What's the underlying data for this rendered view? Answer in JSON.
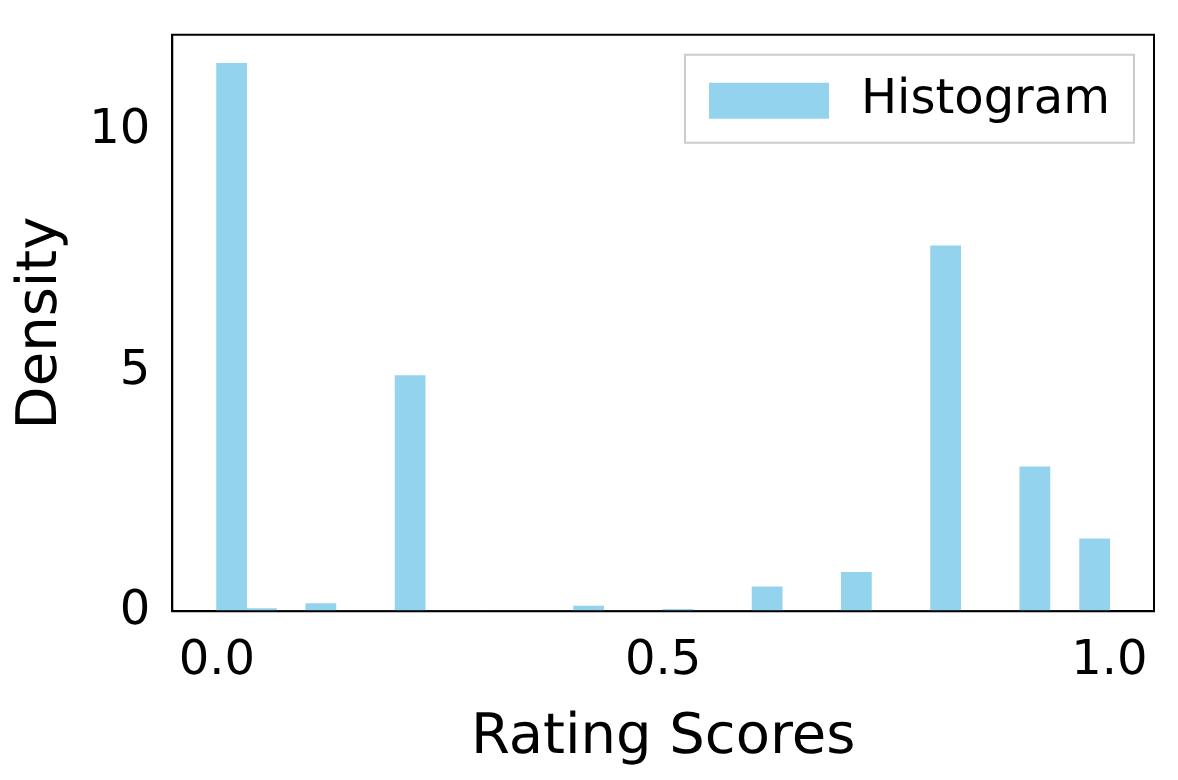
{
  "chart_data": {
    "type": "histogram",
    "xlabel": "Rating Scores",
    "ylabel": "Density",
    "bins": [
      0,
      0.033,
      0.067,
      0.1,
      0.133,
      0.167,
      0.2,
      0.233,
      0.267,
      0.3,
      0.333,
      0.367,
      0.4,
      0.433,
      0.467,
      0.5,
      0.533,
      0.567,
      0.6,
      0.633,
      0.667,
      0.7,
      0.733,
      0.767,
      0.8,
      0.833,
      0.867,
      0.9,
      0.933,
      0.967,
      1
    ],
    "series": [
      {
        "name": "Histogram",
        "color": "#94d3ee",
        "values": [
          11.4,
          0.05,
          0,
          0.15,
          0,
          0,
          4.9,
          0,
          0,
          0,
          0,
          0,
          0.1,
          0,
          0,
          0.03,
          0,
          0,
          0.5,
          0,
          0,
          0.8,
          0,
          0,
          7.6,
          0,
          0,
          3.0,
          0,
          1.5
        ]
      }
    ],
    "xlim": [
      -0.05,
      1.05
    ],
    "ylim": [
      0,
      12
    ],
    "xticks": [
      {
        "value": 0,
        "label": "0.0"
      },
      {
        "value": 0.5,
        "label": "0.5"
      },
      {
        "value": 1,
        "label": "1.0"
      }
    ],
    "yticks": [
      0,
      5,
      10
    ],
    "grid": false,
    "legend": "top right"
  }
}
